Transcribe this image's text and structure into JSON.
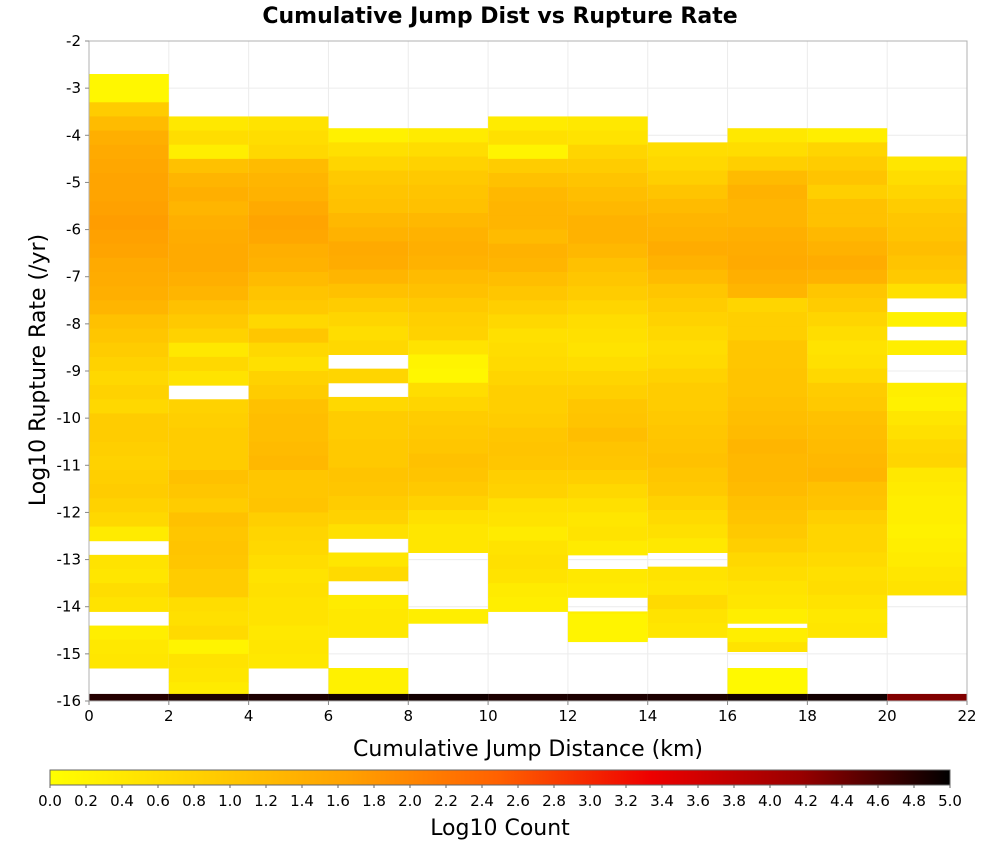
{
  "chart_data": {
    "type": "heatmap",
    "title": "Cumulative Jump Dist vs Rupture Rate",
    "xlabel": "Cumulative Jump Distance (km)",
    "ylabel": "Log10 Rupture Rate (/yr)",
    "xlim": [
      0,
      22
    ],
    "ylim": [
      -16,
      -2
    ],
    "x_ticks": [
      "0",
      "2",
      "4",
      "6",
      "8",
      "10",
      "12",
      "14",
      "16",
      "18",
      "20",
      "22"
    ],
    "y_ticks": [
      "-2",
      "-3",
      "-4",
      "-5",
      "-6",
      "-7",
      "-8",
      "-9",
      "-10",
      "-11",
      "-12",
      "-13",
      "-14",
      "-15",
      "-16"
    ],
    "grid": true,
    "x_bin_width": 2,
    "y_bin_height": 0.3,
    "colorbar": {
      "label": "Log10 Count",
      "min": 0.0,
      "max": 5.0,
      "ticks": [
        "0.0",
        "0.2",
        "0.4",
        "0.6",
        "0.8",
        "1.0",
        "1.2",
        "1.4",
        "1.6",
        "1.8",
        "2.0",
        "2.2",
        "2.4",
        "2.6",
        "2.8",
        "3.0",
        "3.2",
        "3.4",
        "3.6",
        "3.8",
        "4.0",
        "4.2",
        "4.4",
        "4.6",
        "4.8",
        "5.0"
      ],
      "colors": [
        "#ffff00",
        "#ffd000",
        "#ffa000",
        "#ff6000",
        "#ee0000",
        "#990000",
        "#000000"
      ]
    },
    "columns": [
      {
        "x0": 0,
        "y_top": -2.7,
        "values": [
          0.15,
          0.15,
          0.9,
          1.2,
          1.4,
          1.5,
          1.55,
          1.6,
          1.6,
          1.65,
          1.7,
          1.65,
          1.6,
          1.5,
          1.45,
          1.4,
          1.3,
          1.1,
          1.0,
          0.9,
          0.8,
          0.7,
          0.8,
          0.7,
          0.9,
          0.9,
          0.85,
          0.8,
          0.85,
          0.9,
          0.8,
          0.7,
          0.35,
          null,
          0.5,
          0.45,
          0.6,
          0.5,
          null,
          0.3,
          0.4,
          0.45,
          null,
          null,
          null,
          0.35,
          null
        ]
      },
      {
        "x0": 2,
        "y_top": -3.6,
        "values": [
          0.4,
          0.6,
          0.3,
          1.1,
          1.3,
          1.4,
          1.3,
          1.4,
          1.45,
          1.5,
          1.5,
          1.4,
          1.3,
          1.1,
          0.95,
          0.8,
          0.4,
          0.7,
          0.5,
          null,
          0.8,
          0.85,
          0.9,
          0.9,
          0.9,
          1.1,
          1.0,
          0.9,
          1.1,
          1.0,
          1.05,
          1.0,
          0.9,
          0.9,
          0.6,
          0.55,
          0.65,
          0.5,
          0.5,
          0.45,
          0.35,
          null,
          0.1
        ]
      },
      {
        "x0": 4,
        "y_top": -3.6,
        "values": [
          0.5,
          0.6,
          0.7,
          1.2,
          1.3,
          1.35,
          1.5,
          1.6,
          1.55,
          1.4,
          1.35,
          1.2,
          1.05,
          0.95,
          0.7,
          1.0,
          0.7,
          0.55,
          0.8,
          0.9,
          1.1,
          1.15,
          1.15,
          1.2,
          1.25,
          1.0,
          1.0,
          1.05,
          0.85,
          0.75,
          0.7,
          0.6,
          0.5,
          0.55,
          0.5,
          0.5,
          0.4,
          0.45,
          0.4,
          null,
          null,
          null,
          null,
          null
        ]
      },
      {
        "x0": 6,
        "y_top": -3.85,
        "values": [
          0.25,
          0.55,
          0.75,
          0.95,
          1.05,
          1.1,
          1.25,
          1.35,
          1.5,
          1.45,
          1.3,
          1.1,
          0.9,
          0.75,
          0.6,
          0.7,
          null,
          0.75,
          null,
          0.7,
          0.9,
          0.9,
          0.95,
          0.95,
          1.05,
          1.0,
          0.9,
          0.8,
          0.55,
          null,
          0.45,
          0.65,
          null,
          0.35,
          0.4,
          0.4,
          null,
          null,
          null,
          null,
          0.3,
          0.2
        ]
      },
      {
        "x0": 8,
        "y_top": -3.85,
        "values": [
          0.35,
          0.6,
          0.8,
          0.95,
          1.05,
          1.1,
          1.25,
          1.35,
          1.4,
          1.35,
          1.2,
          1.1,
          0.95,
          0.85,
          0.8,
          0.5,
          0.2,
          0.15,
          0.6,
          0.75,
          0.9,
          0.95,
          1.0,
          1.1,
          1.05,
          0.95,
          0.8,
          0.55,
          0.45,
          0.45,
          null,
          null,
          null,
          null,
          0.3
        ]
      },
      {
        "x0": 10,
        "y_top": -3.6,
        "values": [
          0.35,
          0.55,
          0.2,
          0.9,
          1.1,
          1.25,
          1.3,
          1.3,
          1.2,
          1.35,
          1.3,
          1.15,
          1.0,
          0.85,
          0.7,
          0.55,
          0.6,
          0.65,
          0.75,
          0.85,
          0.85,
          0.9,
          1.0,
          1.05,
          1.0,
          0.85,
          0.8,
          0.55,
          0.5,
          0.35,
          0.5,
          0.55,
          0.5,
          0.35,
          0.3
        ]
      },
      {
        "x0": 12,
        "y_top": -3.6,
        "values": [
          0.4,
          0.5,
          0.75,
          0.9,
          1.05,
          1.15,
          1.25,
          1.35,
          1.35,
          1.25,
          1.1,
          1.0,
          0.9,
          0.75,
          0.6,
          0.55,
          0.5,
          0.6,
          0.75,
          0.85,
          1.0,
          1.05,
          1.15,
          1.05,
          1.0,
          0.85,
          0.7,
          0.55,
          0.45,
          0.5,
          0.35,
          null,
          0.4,
          0.35,
          null,
          0.3,
          0.3
        ]
      },
      {
        "x0": 14,
        "y_top": -4.15,
        "values": [
          0.6,
          0.7,
          0.85,
          1.05,
          1.2,
          1.3,
          1.35,
          1.45,
          1.35,
          1.2,
          1.0,
          0.9,
          0.8,
          0.7,
          0.6,
          0.65,
          0.8,
          0.9,
          0.9,
          0.95,
          1.0,
          1.05,
          1.1,
          1.0,
          0.95,
          0.8,
          0.65,
          0.55,
          0.4,
          null,
          0.5,
          0.45,
          0.65,
          0.5,
          0.45
        ]
      },
      {
        "x0": 16,
        "y_top": -3.85,
        "values": [
          0.4,
          0.6,
          0.85,
          1.2,
          1.35,
          1.3,
          1.3,
          1.4,
          1.45,
          1.5,
          1.4,
          1.3,
          0.75,
          0.85,
          0.85,
          1.0,
          1.0,
          1.05,
          1.05,
          1.1,
          1.15,
          1.2,
          1.3,
          1.25,
          1.25,
          1.2,
          1.1,
          1.05,
          0.95,
          0.85,
          0.7,
          0.6,
          0.5,
          0.45,
          0.3,
          null,
          0.5,
          null,
          null,
          0.2,
          0.2
        ]
      },
      {
        "x0": 18,
        "y_top": -3.85,
        "values": [
          0.3,
          0.75,
          0.9,
          1.05,
          0.85,
          1.1,
          1.1,
          1.25,
          1.35,
          1.45,
          1.35,
          1.0,
          0.9,
          0.75,
          0.6,
          0.5,
          0.55,
          0.7,
          0.9,
          0.95,
          1.1,
          1.15,
          1.2,
          1.25,
          1.3,
          1.1,
          1.05,
          0.85,
          0.75,
          0.75,
          0.65,
          0.55,
          0.6,
          0.5,
          0.4,
          0.45
        ]
      },
      {
        "x0": 20,
        "y_top": -4.45,
        "values": [
          0.45,
          0.6,
          0.75,
          0.9,
          1.0,
          1.05,
          1.15,
          1.05,
          0.95,
          0.55,
          null,
          0.25,
          null,
          0.3,
          null,
          null,
          0.3,
          0.25,
          0.45,
          0.55,
          0.7,
          0.75,
          0.4,
          0.35,
          0.3,
          0.3,
          0.25,
          0.3,
          0.35,
          0.45,
          0.5
        ]
      }
    ],
    "floor_row": {
      "y_range": [
        -16,
        -15.85
      ],
      "values": [
        4.8,
        4.85,
        4.85,
        4.9,
        4.9,
        4.85,
        4.85,
        4.85,
        4.9,
        4.9,
        4.3
      ]
    },
    "extra_cells": [
      {
        "x0": 2,
        "y_top": -14.7,
        "height": 0.3,
        "value": 0.2
      },
      {
        "x0": 6,
        "y_top": -15.3,
        "height": 0.6,
        "value": 0.25
      },
      {
        "x0": 12,
        "y_top": -14.15,
        "height": 0.6,
        "value": 0.2
      },
      {
        "x0": 16,
        "y_top": -14.45,
        "height": 0.3,
        "value": 0.3
      },
      {
        "x0": 16,
        "y_top": -15.3,
        "height": 0.6,
        "value": 0.1
      }
    ]
  }
}
